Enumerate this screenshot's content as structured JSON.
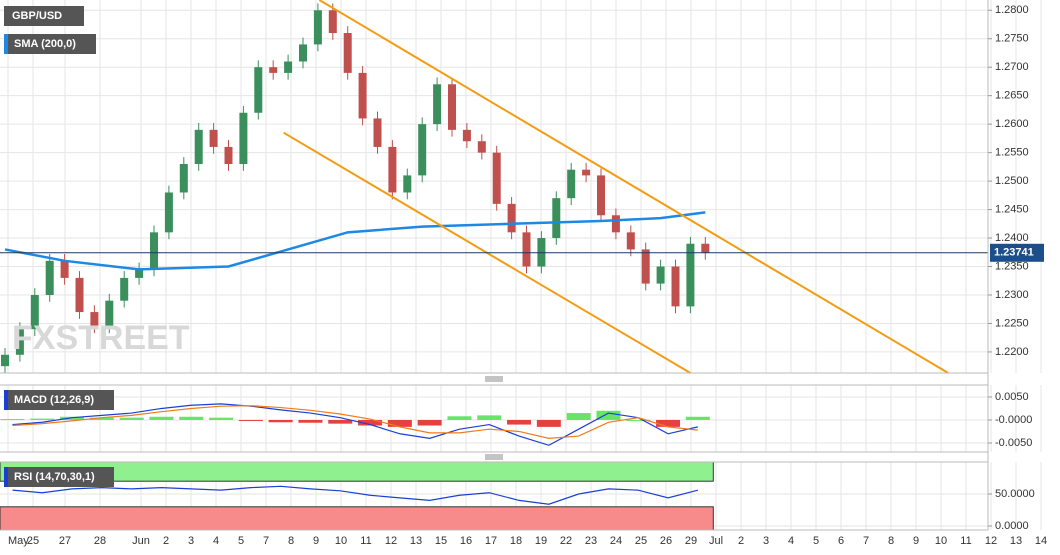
{
  "chart_data": [
    {
      "type": "candlestick",
      "symbol": "GBP/USD",
      "indicator": "SMA (200,0)",
      "watermark": "FXSTREET",
      "ylim": [
        1.2163,
        1.2818
      ],
      "yticks": [
        {
          "value": 1.28,
          "label": "1.2800"
        },
        {
          "value": 1.275,
          "label": "1.2750"
        },
        {
          "value": 1.27,
          "label": "1.2700"
        },
        {
          "value": 1.265,
          "label": "1.2650"
        },
        {
          "value": 1.26,
          "label": "1.2600"
        },
        {
          "value": 1.255,
          "label": "1.2550"
        },
        {
          "value": 1.25,
          "label": "1.2500"
        },
        {
          "value": 1.245,
          "label": "1.2450"
        },
        {
          "value": 1.24,
          "label": "1.2400"
        },
        {
          "value": 1.235,
          "label": "1.2350"
        },
        {
          "value": 1.23,
          "label": "1.2300"
        },
        {
          "value": 1.225,
          "label": "1.2250"
        },
        {
          "value": 1.22,
          "label": "1.2200"
        }
      ],
      "up_color": "#3a8f5c",
      "down_color": "#c0504d",
      "open": [
        1.2175,
        1.2195,
        1.224,
        1.23,
        1.236,
        1.233,
        1.227,
        1.2245,
        1.229,
        1.233,
        1.2345,
        1.241,
        1.248,
        1.253,
        1.259,
        1.256,
        1.253,
        1.262,
        1.27,
        1.269,
        1.271,
        1.274,
        1.28,
        1.276,
        1.269,
        1.261,
        1.256,
        1.248,
        1.251,
        1.26,
        1.267,
        1.259,
        1.257,
        1.255,
        1.246,
        1.241,
        1.235,
        1.24,
        1.247,
        1.252,
        1.251,
        1.244,
        1.241,
        1.238,
        1.232,
        1.235,
        1.228,
        1.239
      ],
      "high": [
        1.2207,
        1.2252,
        1.2312,
        1.2372,
        1.2372,
        1.2342,
        1.2282,
        1.2302,
        1.2342,
        1.2357,
        1.2422,
        1.2492,
        1.2542,
        1.2602,
        1.2602,
        1.2572,
        1.2632,
        1.2712,
        1.2712,
        1.2722,
        1.2752,
        1.2812,
        1.2812,
        1.2772,
        1.2702,
        1.2622,
        1.2572,
        1.2522,
        1.2612,
        1.2682,
        1.2682,
        1.2602,
        1.2582,
        1.2562,
        1.2472,
        1.2422,
        1.2412,
        1.2482,
        1.2532,
        1.2532,
        1.2522,
        1.2452,
        1.2422,
        1.2392,
        1.2362,
        1.2362,
        1.2402,
        1.2402
      ],
      "low": [
        1.2163,
        1.2183,
        1.2228,
        1.2288,
        1.2318,
        1.2258,
        1.2233,
        1.2233,
        1.2278,
        1.2318,
        1.2333,
        1.2398,
        1.2468,
        1.2518,
        1.2548,
        1.2518,
        1.2518,
        1.2608,
        1.2678,
        1.2678,
        1.2698,
        1.2728,
        1.2748,
        1.2678,
        1.2598,
        1.2548,
        1.2468,
        1.2468,
        1.2498,
        1.2588,
        1.2578,
        1.2558,
        1.2538,
        1.2448,
        1.2398,
        1.2338,
        1.2338,
        1.2388,
        1.2458,
        1.2498,
        1.2428,
        1.2398,
        1.2368,
        1.2308,
        1.2308,
        1.2268,
        1.2268,
        1.2362
      ],
      "close": [
        1.2195,
        1.224,
        1.23,
        1.236,
        1.233,
        1.227,
        1.2245,
        1.229,
        1.233,
        1.2345,
        1.241,
        1.248,
        1.253,
        1.259,
        1.256,
        1.253,
        1.262,
        1.27,
        1.269,
        1.271,
        1.274,
        1.28,
        1.276,
        1.269,
        1.261,
        1.256,
        1.248,
        1.251,
        1.26,
        1.267,
        1.259,
        1.257,
        1.255,
        1.246,
        1.241,
        1.235,
        1.24,
        1.247,
        1.252,
        1.251,
        1.244,
        1.241,
        1.238,
        1.232,
        1.235,
        1.228,
        1.239,
        1.2374
      ],
      "sma": {
        "color": "#1e88e5",
        "x": [
          0,
          4,
          9,
          15,
          19,
          23,
          28,
          34,
          40,
          44,
          47
        ],
        "values": [
          1.238,
          1.236,
          1.2345,
          1.235,
          1.238,
          1.241,
          1.242,
          1.2425,
          1.243,
          1.2435,
          1.2445
        ]
      },
      "trendlines": [
        {
          "color": "#f39c12",
          "x": [
            21.1,
            63.3
          ],
          "values": [
            1.2818,
            1.2163
          ]
        },
        {
          "color": "#f39c12",
          "x": [
            18.7,
            46
          ],
          "values": [
            1.2585,
            1.2163
          ]
        }
      ],
      "last_price": {
        "value": 1.23741,
        "label": "1.23741"
      }
    },
    {
      "type": "macd",
      "label": "MACD (12,26,9)",
      "ylim": [
        -0.00696,
        0.0076
      ],
      "yticks": [
        {
          "value": 0.005,
          "label": "0.0050"
        },
        {
          "value": 0,
          "label": "-0.0000"
        },
        {
          "value": -0.005,
          "label": "-0.0050"
        }
      ],
      "macd": {
        "color": "#1a3fd6",
        "values": [
          -0.001,
          -0.0005,
          0.0005,
          0.001,
          0.0015,
          0.0025,
          0.0032,
          0.0035,
          0.003,
          0.0022,
          0.0015,
          0.0005,
          -0.001,
          -0.003,
          -0.004,
          -0.002,
          -0.001,
          -0.0035,
          -0.0055,
          -0.002,
          0.0015,
          0.0005,
          -0.003,
          -0.0015
        ]
      },
      "signal": {
        "color": "#f07b1c",
        "values": [
          -0.0012,
          -0.0008,
          -0.0002,
          0.0005,
          0.001,
          0.0018,
          0.0025,
          0.003,
          0.0031,
          0.0027,
          0.0021,
          0.0013,
          0.0002,
          -0.0015,
          -0.0028,
          -0.0028,
          -0.002,
          -0.0025,
          -0.004,
          -0.0035,
          -0.0005,
          0.0005,
          -0.0015,
          -0.0022
        ]
      },
      "histogram": {
        "up_color": "#4ee04e",
        "down_color": "#e0201c",
        "values": [
          0.0002,
          0.0003,
          0.0007,
          0.0005,
          0.0005,
          0.0007,
          0.0007,
          0.0005,
          -0.0001,
          -0.0005,
          -0.0006,
          -0.0008,
          -0.0012,
          -0.0015,
          -0.0012,
          0.0008,
          0.001,
          -0.001,
          -0.0015,
          0.0015,
          0.002,
          0.0,
          -0.0015,
          0.0007
        ]
      }
    },
    {
      "type": "rsi",
      "label": "RSI (14,70,30,1)",
      "ylim": [
        -6.25,
        100
      ],
      "yticks": [
        {
          "value": 50,
          "label": "50.0000"
        },
        {
          "value": 0,
          "label": "0.0000"
        }
      ],
      "overbought": 70,
      "oversold": 30,
      "color": "#1a3fd6",
      "values": [
        56,
        52,
        58,
        60,
        58,
        60,
        58,
        56,
        60,
        62,
        58,
        55,
        48,
        44,
        40,
        48,
        52,
        40,
        34,
        50,
        58,
        56,
        44,
        56
      ]
    }
  ],
  "date_labels": [
    "May",
    "25",
    "27",
    "28",
    "Jun",
    "2",
    "3",
    "4",
    "5",
    "7",
    "8",
    "9",
    "10",
    "11",
    "12",
    "13",
    "15",
    "16",
    "17",
    "18",
    "19",
    "22",
    "23",
    "24",
    "25",
    "26",
    "29",
    "Jul",
    "2",
    "3",
    "4",
    "5",
    "6",
    "7",
    "8",
    "9",
    "10",
    "11",
    "12",
    "13",
    "14"
  ]
}
